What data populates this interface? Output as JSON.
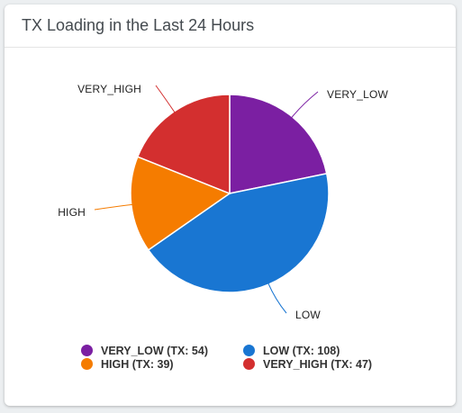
{
  "card": {
    "title": "TX Loading in the Last 24 Hours"
  },
  "chart_data": {
    "type": "pie",
    "title": "TX Loading in the Last 24 Hours",
    "slices": [
      {
        "label": "VERY_LOW",
        "legend": "VERY_LOW (TX: 54)",
        "value": 54,
        "color": "#7b1fa2"
      },
      {
        "label": "LOW",
        "legend": "LOW (TX: 108)",
        "value": 108,
        "color": "#1976d2"
      },
      {
        "label": "HIGH",
        "legend": "HIGH (TX: 39)",
        "value": 39,
        "color": "#f57c00"
      },
      {
        "label": "VERY_HIGH",
        "legend": "VERY_HIGH (TX: 47)",
        "value": 47,
        "color": "#d32f2f"
      }
    ],
    "legend_position": "bottom"
  }
}
